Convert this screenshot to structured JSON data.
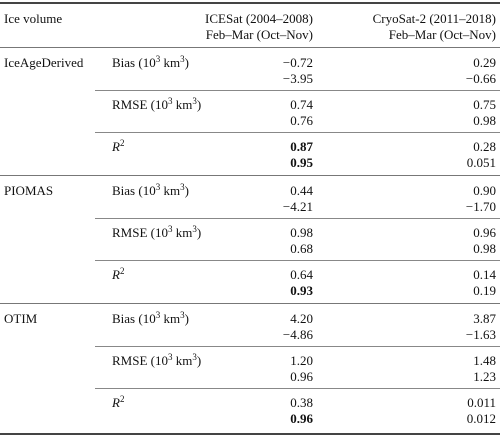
{
  "header": {
    "col0": "Ice volume",
    "col1_line1": "ICESat (2004–2008)",
    "col1_line2": "Feb–Mar (Oct–Nov)",
    "col2_line1": "CryoSat-2 (2011–2018)",
    "col2_line2": "Feb–Mar (Oct–Nov)"
  },
  "labels": {
    "bias_prefix": "Bias (10",
    "rmse_prefix": "RMSE (10",
    "exp": "3",
    "unit_suffix": " km",
    "close": ")",
    "r": "R",
    "r_exp": "2"
  },
  "models": [
    {
      "name": "IceAgeDerived",
      "bias": {
        "icesat": [
          "−0.72",
          "−3.95"
        ],
        "cryosat": [
          "0.29",
          "−0.66"
        ]
      },
      "rmse": {
        "icesat": [
          "0.74",
          "0.76"
        ],
        "cryosat": [
          "0.75",
          "0.98"
        ]
      },
      "r2": {
        "icesat": [
          "0.87",
          "0.95"
        ],
        "cryosat": [
          "0.28",
          "0.051"
        ]
      }
    },
    {
      "name": "PIOMAS",
      "bias": {
        "icesat": [
          "0.44",
          "−4.21"
        ],
        "cryosat": [
          "0.90",
          "−1.70"
        ]
      },
      "rmse": {
        "icesat": [
          "0.98",
          "0.68"
        ],
        "cryosat": [
          "0.96",
          "0.98"
        ]
      },
      "r2": {
        "icesat": [
          "0.64",
          "0.93"
        ],
        "cryosat": [
          "0.14",
          "0.19"
        ]
      }
    },
    {
      "name": "OTIM",
      "bias": {
        "icesat": [
          "4.20",
          "−4.86"
        ],
        "cryosat": [
          "3.87",
          "−1.63"
        ]
      },
      "rmse": {
        "icesat": [
          "1.20",
          "0.96"
        ],
        "cryosat": [
          "1.48",
          "1.23"
        ]
      },
      "r2": {
        "icesat": [
          "0.38",
          "0.96"
        ],
        "cryosat": [
          "0.011",
          "0.012"
        ]
      }
    }
  ]
}
